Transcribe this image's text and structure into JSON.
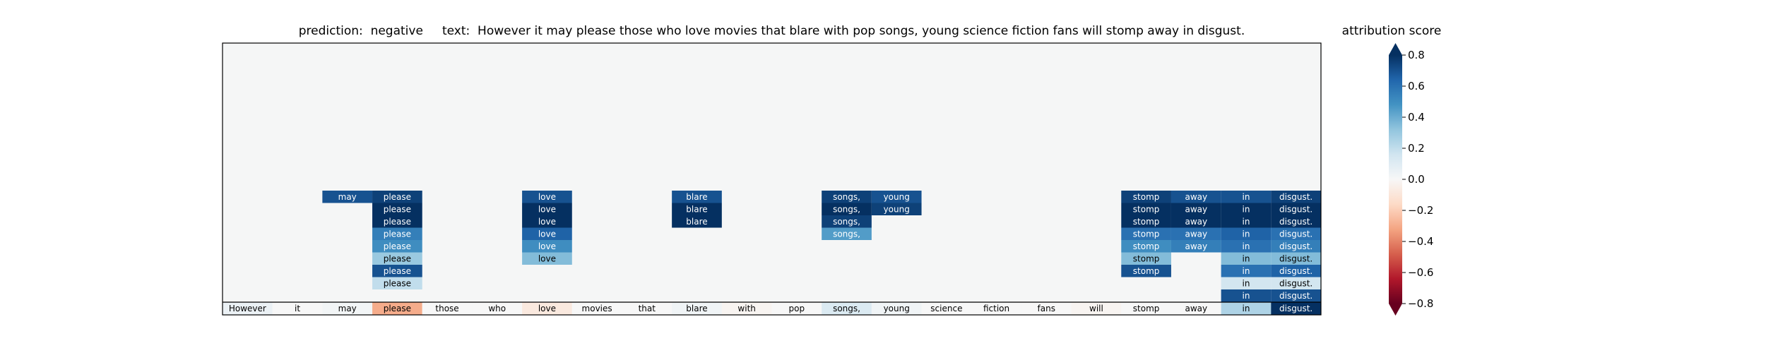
{
  "header": {
    "title": "prediction:  negative     text:  However it may please those who love movies that blare with pop songs, young science fiction fans will stomp away in disgust."
  },
  "colorbar": {
    "title": "attribution score",
    "ticks": [
      0.8,
      0.6,
      0.4,
      0.2,
      0.0,
      -0.2,
      -0.4,
      -0.6,
      -0.8
    ],
    "tick_labels": [
      "0.8",
      "0.6",
      "0.4",
      "0.2",
      "0.0",
      "−0.2",
      "−0.4",
      "−0.6",
      "−0.8"
    ],
    "range": [
      -0.8,
      0.8
    ],
    "colormap": "RdBu",
    "extend": "both"
  },
  "chart_data": {
    "type": "heatmap",
    "title": "prediction:  negative     text:  However it may please those who love movies that blare with pop songs, young science fiction fans will stomp away in disgust.",
    "colorbar_label": "attribution score",
    "vmin": -0.8,
    "vmax": 0.8,
    "grid": false,
    "tokens": [
      "However",
      "it",
      "may",
      "please",
      "those",
      "who",
      "love",
      "movies",
      "that",
      "blare",
      "with",
      "pop",
      "songs,",
      "young",
      "science",
      "fiction",
      "fans",
      "will",
      "stomp",
      "away",
      "in",
      "disgust."
    ],
    "base_scores": [
      0.05,
      0.0,
      0.02,
      -0.3,
      0.0,
      0.0,
      -0.08,
      0.0,
      0.0,
      0.03,
      -0.02,
      0.0,
      0.12,
      0.03,
      0.0,
      0.0,
      0.0,
      -0.02,
      0.0,
      0.0,
      0.25,
      0.8
    ],
    "stack_levels_top_to_bottom": [
      [
        null,
        null,
        0.7,
        0.75,
        null,
        null,
        0.7,
        null,
        null,
        0.7,
        null,
        null,
        0.75,
        0.7,
        null,
        null,
        null,
        null,
        0.75,
        0.7,
        0.7,
        0.75
      ],
      [
        null,
        null,
        null,
        0.8,
        null,
        null,
        0.8,
        null,
        null,
        0.8,
        null,
        null,
        0.8,
        0.75,
        null,
        null,
        null,
        null,
        0.8,
        0.8,
        0.8,
        0.8
      ],
      [
        null,
        null,
        null,
        0.8,
        null,
        null,
        0.8,
        null,
        null,
        0.8,
        null,
        null,
        0.75,
        null,
        null,
        null,
        null,
        null,
        0.8,
        0.8,
        0.8,
        0.8
      ],
      [
        null,
        null,
        null,
        0.55,
        null,
        null,
        0.65,
        null,
        null,
        null,
        null,
        null,
        0.45,
        null,
        null,
        null,
        null,
        null,
        0.6,
        0.6,
        0.65,
        0.6
      ],
      [
        null,
        null,
        null,
        0.5,
        null,
        null,
        0.5,
        null,
        null,
        null,
        null,
        null,
        null,
        null,
        null,
        null,
        null,
        null,
        0.5,
        0.55,
        0.6,
        0.55
      ],
      [
        null,
        null,
        null,
        0.3,
        null,
        null,
        0.35,
        null,
        null,
        null,
        null,
        null,
        null,
        null,
        null,
        null,
        null,
        null,
        0.35,
        null,
        0.35,
        0.35
      ],
      [
        null,
        null,
        null,
        0.7,
        null,
        null,
        null,
        null,
        null,
        null,
        null,
        null,
        null,
        null,
        null,
        null,
        null,
        null,
        0.7,
        null,
        0.6,
        0.65
      ],
      [
        null,
        null,
        null,
        0.2,
        null,
        null,
        null,
        null,
        null,
        null,
        null,
        null,
        null,
        null,
        null,
        null,
        null,
        null,
        null,
        null,
        0.15,
        0.15
      ],
      [
        null,
        null,
        null,
        null,
        null,
        null,
        null,
        null,
        null,
        null,
        null,
        null,
        null,
        null,
        null,
        null,
        null,
        null,
        null,
        null,
        0.7,
        0.7
      ]
    ]
  }
}
